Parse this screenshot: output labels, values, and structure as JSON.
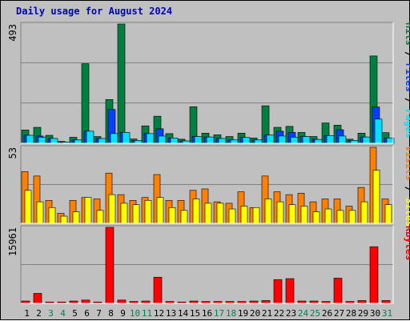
{
  "title": "Daily usage for August 2024",
  "colors": {
    "hits": "#008040",
    "files": "#0040ff",
    "pages": "#00e0ff",
    "visits": "#ff8000",
    "sites": "#ffff00",
    "kbytes": "#ff0000",
    "weekday_label": "#000000",
    "weekend_label": "#00805c",
    "plot_bg": "#c0c0c0",
    "gridline": "#808080"
  },
  "chart_data": [
    {
      "type": "bar",
      "ymax_label": "493",
      "ymax": 493,
      "x": [
        "1",
        "2",
        "3",
        "4",
        "5",
        "6",
        "7",
        "8",
        "9",
        "10",
        "11",
        "12",
        "13",
        "14",
        "15",
        "16",
        "17",
        "18",
        "19",
        "20",
        "21",
        "22",
        "23",
        "24",
        "25",
        "26",
        "27",
        "28",
        "29",
        "30",
        "31"
      ],
      "weekend_days": [
        3,
        4,
        10,
        11,
        17,
        18,
        24,
        25,
        31
      ],
      "series": [
        {
          "name": "Hits",
          "color": "#008040",
          "values": [
            55,
            66,
            33,
            8,
            25,
            329,
            28,
            181,
            493,
            18,
            72,
            112,
            40,
            17,
            151,
            42,
            35,
            28,
            42,
            22,
            155,
            66,
            70,
            45,
            28,
            84,
            75,
            17,
            42,
            361,
            44
          ]
        },
        {
          "name": "Files",
          "color": "#0040ff",
          "values": [
            33,
            30,
            20,
            5,
            14,
            50,
            20,
            140,
            45,
            12,
            40,
            60,
            22,
            10,
            28,
            26,
            20,
            14,
            24,
            14,
            34,
            50,
            45,
            28,
            16,
            32,
            56,
            12,
            26,
            150,
            22
          ]
        },
        {
          "name": "Pages",
          "color": "#00e0ff",
          "values": [
            33,
            25,
            20,
            5,
            14,
            50,
            20,
            40,
            45,
            12,
            40,
            30,
            22,
            10,
            28,
            26,
            20,
            14,
            24,
            14,
            34,
            30,
            25,
            28,
            16,
            32,
            30,
            12,
            26,
            100,
            22
          ]
        }
      ],
      "right_labels": [
        "Pages",
        "Files",
        "Hits"
      ]
    },
    {
      "type": "bar",
      "ymax_label": "53",
      "ymax": 53,
      "x": [
        "1",
        "2",
        "3",
        "4",
        "5",
        "6",
        "7",
        "8",
        "9",
        "10",
        "11",
        "12",
        "13",
        "14",
        "15",
        "16",
        "17",
        "18",
        "19",
        "20",
        "21",
        "22",
        "23",
        "24",
        "25",
        "26",
        "27",
        "28",
        "29",
        "30",
        "31"
      ],
      "series": [
        {
          "name": "Visits",
          "color": "#ff8000",
          "values": [
            36,
            33,
            16,
            7,
            16,
            18,
            17,
            35,
            20,
            16,
            18,
            34,
            16,
            16,
            23,
            24,
            15,
            14,
            22,
            11,
            33,
            22,
            20,
            21,
            15,
            17,
            17,
            12,
            25,
            53,
            17
          ]
        },
        {
          "name": "Sites",
          "color": "#ffff00",
          "values": [
            23,
            15,
            11,
            5,
            8,
            18,
            9,
            20,
            14,
            13,
            16,
            18,
            11,
            9,
            17,
            14,
            14,
            10,
            12,
            11,
            17,
            15,
            13,
            12,
            8,
            10,
            9,
            9,
            15,
            37,
            13
          ]
        }
      ],
      "right_labels": [
        "Sites",
        "Visits"
      ]
    },
    {
      "type": "bar",
      "ymax_label": "15961",
      "ymax": 15961,
      "x": [
        "1",
        "2",
        "3",
        "4",
        "5",
        "6",
        "7",
        "8",
        "9",
        "10",
        "11",
        "12",
        "13",
        "14",
        "15",
        "16",
        "17",
        "18",
        "19",
        "20",
        "21",
        "22",
        "23",
        "24",
        "25",
        "26",
        "27",
        "28",
        "29",
        "30",
        "31"
      ],
      "series": [
        {
          "name": "KBytes",
          "color": "#ff0000",
          "values": [
            500,
            2100,
            300,
            300,
            500,
            700,
            300,
            15961,
            700,
            400,
            500,
            5500,
            400,
            300,
            500,
            400,
            400,
            400,
            400,
            500,
            600,
            5000,
            5200,
            500,
            500,
            400,
            5300,
            400,
            600,
            11900,
            600
          ]
        }
      ],
      "right_labels": [
        "KBytes"
      ]
    }
  ]
}
